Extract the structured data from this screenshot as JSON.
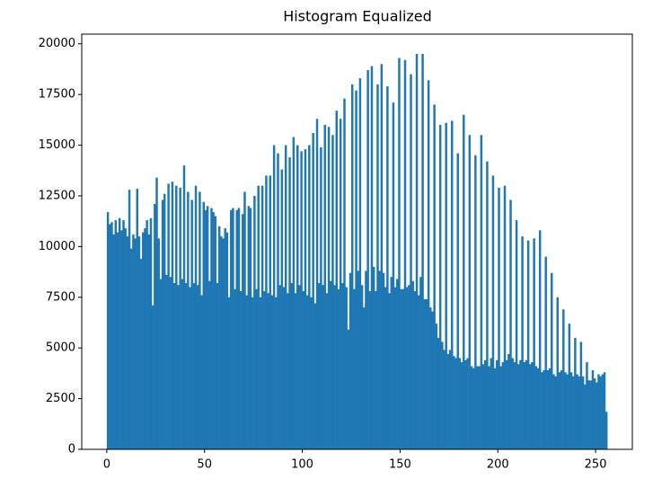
{
  "chart_data": {
    "type": "histogram",
    "title": "Histogram Equalized",
    "color": "#1f77b4",
    "bins": [
      0,
      1,
      2,
      3,
      4,
      5,
      6,
      7,
      8,
      9,
      10,
      11,
      12,
      13,
      14,
      15,
      16,
      17,
      18,
      19,
      20,
      21,
      22,
      23,
      24,
      25,
      26,
      27,
      28,
      29,
      30,
      31,
      32,
      33,
      34,
      35,
      36,
      37,
      38,
      39,
      40,
      41,
      42,
      43,
      44,
      45,
      46,
      47,
      48,
      49,
      50,
      51,
      52,
      53,
      54,
      55,
      56,
      57,
      58,
      59,
      60,
      61,
      62,
      63,
      64,
      65,
      66,
      67,
      68,
      69,
      70,
      71,
      72,
      73,
      74,
      75,
      76,
      77,
      78,
      79,
      80,
      81,
      82,
      83,
      84,
      85,
      86,
      87,
      88,
      89,
      90,
      91,
      92,
      93,
      94,
      95,
      96,
      97,
      98,
      99,
      100,
      101,
      102,
      103,
      104,
      105,
      106,
      107,
      108,
      109,
      110,
      111,
      112,
      113,
      114,
      115,
      116,
      117,
      118,
      119,
      120,
      121,
      122,
      123,
      124,
      125,
      126,
      127,
      128,
      129,
      130,
      131,
      132,
      133,
      134,
      135,
      136,
      137,
      138,
      139,
      140,
      141,
      142,
      143,
      144,
      145,
      146,
      147,
      148,
      149,
      150,
      151,
      152,
      153,
      154,
      155,
      156,
      157,
      158,
      159,
      160,
      161,
      162,
      163,
      164,
      165,
      166,
      167,
      168,
      169,
      170,
      171,
      172,
      173,
      174,
      175,
      176,
      177,
      178,
      179,
      180,
      181,
      182,
      183,
      184,
      185,
      186,
      187,
      188,
      189,
      190,
      191,
      192,
      193,
      194,
      195,
      196,
      197,
      198,
      199,
      200,
      201,
      202,
      203,
      204,
      205,
      206,
      207,
      208,
      209,
      210,
      211,
      212,
      213,
      214,
      215,
      216,
      217,
      218,
      219,
      220,
      221,
      222,
      223,
      224,
      225,
      226,
      227,
      228,
      229,
      230,
      231,
      232,
      233,
      234,
      235,
      236,
      237,
      238,
      239,
      240,
      241,
      242,
      243,
      244,
      245,
      246,
      247,
      248,
      249,
      250,
      251,
      252,
      253,
      254,
      255,
      256
    ],
    "values": [
      11700,
      11100,
      11200,
      10600,
      11300,
      10700,
      11400,
      10800,
      11300,
      10900,
      10500,
      12800,
      9900,
      10600,
      10400,
      12850,
      10500,
      9400,
      10700,
      10900,
      11300,
      10600,
      11400,
      7100,
      12100,
      13400,
      10400,
      8400,
      12300,
      12600,
      8600,
      13100,
      8500,
      13200,
      8200,
      13000,
      8100,
      12900,
      8400,
      14000,
      8200,
      12700,
      8000,
      12300,
      8200,
      13000,
      8100,
      12700,
      7600,
      12200,
      11800,
      12000,
      8300,
      11900,
      11700,
      11500,
      8200,
      11000,
      10500,
      10400,
      10900,
      10700,
      7500,
      11800,
      11900,
      7900,
      11800,
      11900,
      7800,
      11600,
      12700,
      7600,
      12000,
      11900,
      7500,
      12500,
      7900,
      13000,
      7500,
      13000,
      7800,
      13500,
      7700,
      13500,
      7600,
      15000,
      7500,
      14600,
      8100,
      13800,
      8000,
      15000,
      7700,
      14400,
      8200,
      15400,
      7700,
      15000,
      8100,
      14700,
      7800,
      14800,
      7600,
      15000,
      7500,
      15600,
      7200,
      16300,
      8200,
      14900,
      8100,
      16000,
      7700,
      15900,
      8300,
      15500,
      8100,
      16700,
      7900,
      16300,
      8200,
      17300,
      8000,
      5900,
      8700,
      18000,
      7900,
      17700,
      8800,
      18300,
      8100,
      7000,
      8800,
      18700,
      7800,
      18900,
      9000,
      7800,
      18000,
      8800,
      19000,
      8700,
      8000,
      17900,
      7700,
      8500,
      17100,
      8000,
      8400,
      19300,
      7900,
      7900,
      19200,
      8000,
      8100,
      18500,
      8300,
      7800,
      19500,
      7600,
      8500,
      19500,
      7400,
      7400,
      18200,
      7000,
      6800,
      17000,
      6200,
      5500,
      16000,
      5300,
      4900,
      16100,
      4700,
      4900,
      16200,
      4600,
      4500,
      14600,
      4500,
      4300,
      16500,
      4400,
      4500,
      15500,
      4100,
      4000,
      14500,
      4100,
      4100,
      15500,
      4200,
      4400,
      14200,
      4100,
      4500,
      13500,
      4000,
      4400,
      12900,
      4100,
      4300,
      13000,
      4400,
      4700,
      12300,
      4500,
      4300,
      11300,
      4200,
      4400,
      10500,
      4300,
      4400,
      10300,
      4200,
      4300,
      10400,
      4100,
      4000,
      10800,
      3800,
      3900,
      9500,
      3900,
      4000,
      8700,
      3700,
      3600,
      7500,
      3800,
      3900,
      6900,
      3800,
      3700,
      6200,
      3800,
      3600,
      5500,
      3700,
      3600,
      5300,
      3600,
      3200,
      4300,
      3400,
      3400,
      3900,
      3500,
      3300,
      3700,
      3600,
      3700,
      3800,
      1850
    ],
    "xlim": [
      -12.8,
      268.8
    ],
    "xticks": [
      0,
      50,
      100,
      150,
      200,
      250
    ],
    "ylim": [
      0,
      20475
    ],
    "yticks": [
      0,
      2500,
      5000,
      7500,
      10000,
      12500,
      15000,
      17500,
      20000
    ]
  }
}
